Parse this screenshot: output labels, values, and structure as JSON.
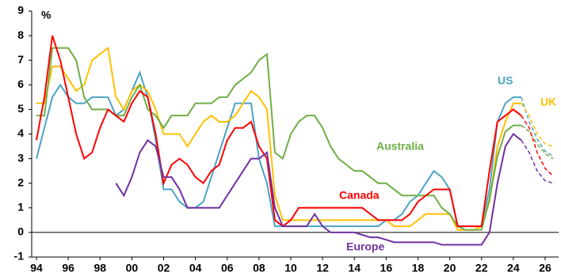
{
  "chart_data": {
    "type": "line",
    "y_unit": "%",
    "x": [
      1994,
      1994.5,
      1995,
      1995.5,
      1996,
      1996.5,
      1997,
      1997.5,
      1998,
      1998.5,
      1999,
      1999.5,
      2000,
      2000.5,
      2001,
      2001.5,
      2002,
      2002.5,
      2003,
      2003.5,
      2004,
      2004.5,
      2005,
      2005.5,
      2006,
      2006.5,
      2007,
      2007.5,
      2008,
      2008.5,
      2009,
      2009.5,
      2010,
      2010.5,
      2011,
      2011.5,
      2012,
      2012.5,
      2013,
      2013.5,
      2014,
      2014.5,
      2015,
      2015.5,
      2016,
      2016.5,
      2017,
      2017.5,
      2018,
      2018.5,
      2019,
      2019.5,
      2020,
      2020.5,
      2021,
      2021.5,
      2022,
      2022.5,
      2023,
      2023.5,
      2024,
      2024.5
    ],
    "pricing_x": [
      2025,
      2025.5,
      2026,
      2026.5
    ],
    "series": [
      {
        "name": "US",
        "color": "#4ba3c7",
        "values": [
          3.0,
          4.25,
          5.5,
          6.0,
          5.5,
          5.25,
          5.25,
          5.5,
          5.5,
          5.5,
          4.75,
          5.0,
          5.75,
          6.5,
          5.5,
          3.75,
          1.75,
          1.75,
          1.25,
          1.0,
          1.0,
          1.25,
          2.25,
          3.25,
          4.25,
          5.25,
          5.25,
          5.25,
          3.0,
          2.0,
          0.25,
          0.25,
          0.25,
          0.25,
          0.25,
          0.25,
          0.25,
          0.25,
          0.25,
          0.25,
          0.25,
          0.25,
          0.25,
          0.25,
          0.5,
          0.5,
          0.75,
          1.25,
          1.5,
          2.0,
          2.5,
          2.25,
          1.75,
          0.25,
          0.25,
          0.25,
          0.25,
          1.75,
          4.5,
          5.25,
          5.5,
          5.5
        ],
        "pricing": [
          4.5,
          3.8,
          3.3,
          3.1
        ]
      },
      {
        "name": "UK",
        "color": "#ffc000",
        "values": [
          5.25,
          5.25,
          6.75,
          6.75,
          6.25,
          5.75,
          6.0,
          7.0,
          7.25,
          7.5,
          5.5,
          5.0,
          5.75,
          6.0,
          5.75,
          5.0,
          4.0,
          4.0,
          4.0,
          3.5,
          4.0,
          4.5,
          4.75,
          4.5,
          4.5,
          4.75,
          5.25,
          5.75,
          5.5,
          5.0,
          1.5,
          0.5,
          0.5,
          0.5,
          0.5,
          0.5,
          0.5,
          0.5,
          0.5,
          0.5,
          0.5,
          0.5,
          0.5,
          0.5,
          0.5,
          0.25,
          0.25,
          0.25,
          0.5,
          0.75,
          0.75,
          0.75,
          0.75,
          0.1,
          0.1,
          0.1,
          0.25,
          1.25,
          3.5,
          4.5,
          5.25,
          5.25
        ],
        "pricing": [
          4.75,
          4.0,
          3.6,
          3.5
        ]
      },
      {
        "name": "Australia",
        "color": "#70ad47",
        "values": [
          4.75,
          4.75,
          7.5,
          7.5,
          7.5,
          7.0,
          5.5,
          5.0,
          5.0,
          5.0,
          4.75,
          4.75,
          5.5,
          6.0,
          5.0,
          4.75,
          4.25,
          4.75,
          4.75,
          4.75,
          5.25,
          5.25,
          5.25,
          5.5,
          5.5,
          6.0,
          6.25,
          6.5,
          7.0,
          7.25,
          3.25,
          3.0,
          4.0,
          4.5,
          4.75,
          4.75,
          4.25,
          3.5,
          3.0,
          2.75,
          2.5,
          2.5,
          2.25,
          2.0,
          2.0,
          1.75,
          1.5,
          1.5,
          1.5,
          1.5,
          1.5,
          1.0,
          0.75,
          0.25,
          0.1,
          0.1,
          0.1,
          1.35,
          3.1,
          4.1,
          4.35,
          4.35
        ],
        "pricing": [
          4.1,
          3.6,
          3.2,
          3.0
        ]
      },
      {
        "name": "Canada",
        "color": "#ff0000",
        "values": [
          3.75,
          5.5,
          8.0,
          7.0,
          5.5,
          4.0,
          3.0,
          3.25,
          4.25,
          5.0,
          4.75,
          4.5,
          5.25,
          5.75,
          5.5,
          4.0,
          2.0,
          2.75,
          3.0,
          2.75,
          2.25,
          2.0,
          2.5,
          2.75,
          3.75,
          4.25,
          4.25,
          4.5,
          3.5,
          3.0,
          0.5,
          0.25,
          0.5,
          1.0,
          1.0,
          1.0,
          1.0,
          1.0,
          1.0,
          1.0,
          1.0,
          1.0,
          0.75,
          0.5,
          0.5,
          0.5,
          0.5,
          0.75,
          1.25,
          1.5,
          1.75,
          1.75,
          1.75,
          0.25,
          0.25,
          0.25,
          0.25,
          2.5,
          4.5,
          4.75,
          5.0,
          4.75
        ],
        "pricing": [
          4.25,
          3.25,
          2.6,
          2.3
        ]
      },
      {
        "name": "Europe",
        "color": "#7030a0",
        "values": [
          null,
          null,
          null,
          null,
          null,
          null,
          null,
          null,
          null,
          null,
          2.0,
          1.5,
          2.25,
          3.25,
          3.75,
          3.5,
          2.25,
          2.25,
          1.75,
          1.0,
          1.0,
          1.0,
          1.0,
          1.0,
          1.5,
          2.0,
          2.5,
          3.0,
          3.0,
          3.25,
          1.0,
          0.25,
          0.25,
          0.25,
          0.25,
          0.75,
          0.25,
          0.0,
          0.0,
          0.0,
          0.0,
          -0.1,
          -0.2,
          -0.2,
          -0.3,
          -0.4,
          -0.4,
          -0.4,
          -0.4,
          -0.4,
          -0.4,
          -0.5,
          -0.5,
          -0.5,
          -0.5,
          -0.5,
          -0.5,
          0.0,
          2.0,
          3.5,
          4.0,
          3.75
        ],
        "pricing": [
          3.25,
          2.5,
          2.1,
          2.0
        ]
      }
    ],
    "xlim": [
      1993.7,
      2026.85
    ],
    "xticks": [
      {
        "value": 1994,
        "label": "94"
      },
      {
        "value": 1996,
        "label": "96"
      },
      {
        "value": 1998,
        "label": "98"
      },
      {
        "value": 2000,
        "label": "00"
      },
      {
        "value": 2002,
        "label": "02"
      },
      {
        "value": 2004,
        "label": "04"
      },
      {
        "value": 2006,
        "label": "06"
      },
      {
        "value": 2008,
        "label": "08"
      },
      {
        "value": 2010,
        "label": "10"
      },
      {
        "value": 2012,
        "label": "12"
      },
      {
        "value": 2014,
        "label": "14"
      },
      {
        "value": 2016,
        "label": "16"
      },
      {
        "value": 2018,
        "label": "18"
      },
      {
        "value": 2020,
        "label": "20"
      },
      {
        "value": 2022,
        "label": "22"
      },
      {
        "value": 2024,
        "label": "24"
      },
      {
        "value": 2026,
        "label": "26"
      }
    ],
    "ylim": [
      -1,
      9
    ],
    "yticks": [
      -1,
      0,
      1,
      2,
      3,
      4,
      5,
      6,
      7,
      8,
      9
    ]
  }
}
